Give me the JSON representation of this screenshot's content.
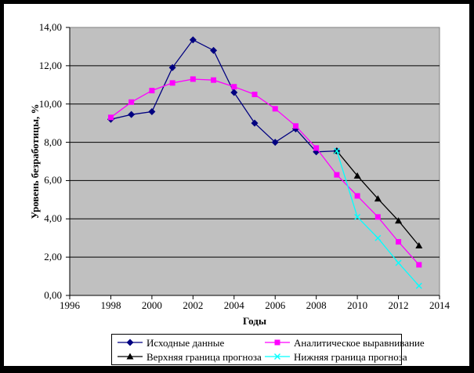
{
  "window": {
    "background": "#ffffff",
    "frame_color": "#000000"
  },
  "chart_data": {
    "type": "line",
    "title": "",
    "xlabel": "Годы",
    "ylabel": "Уровень безработицы, %",
    "xlim": [
      1996,
      2014
    ],
    "ylim": [
      0,
      14
    ],
    "x_tick_values": [
      1996,
      1998,
      2000,
      2002,
      2004,
      2006,
      2008,
      2010,
      2012,
      2014
    ],
    "x_tick_labels": [
      "1996",
      "1998",
      "2000",
      "2002",
      "2004",
      "2006",
      "2008",
      "2010",
      "2012",
      "2014"
    ],
    "y_tick_values": [
      0,
      2,
      4,
      6,
      8,
      10,
      12,
      14
    ],
    "y_tick_labels": [
      "0,00",
      "2,00",
      "4,00",
      "6,00",
      "8,00",
      "10,00",
      "12,00",
      "14,00"
    ],
    "grid": "horizontal",
    "plot_background": "#c0c0c0",
    "plot_border_color": "#808080",
    "axis_color": "#000000",
    "legend_position": "bottom",
    "series": [
      {
        "name": "Исходные данные",
        "color": "#000080",
        "marker": "diamond",
        "x": [
          1998,
          1999,
          2000,
          2001,
          2002,
          2003,
          2004,
          2005,
          2006,
          2007,
          2008,
          2009
        ],
        "values": [
          9.2,
          9.45,
          9.6,
          11.9,
          13.35,
          12.8,
          10.6,
          9.0,
          8.0,
          8.7,
          7.5,
          7.55
        ]
      },
      {
        "name": "Аналитическое выравнивание",
        "color": "#ff00ff",
        "marker": "square",
        "x": [
          1998,
          1999,
          2000,
          2001,
          2002,
          2003,
          2004,
          2005,
          2006,
          2007,
          2008,
          2009,
          2010,
          2011,
          2012,
          2013
        ],
        "values": [
          9.3,
          10.1,
          10.7,
          11.1,
          11.3,
          11.25,
          10.9,
          10.5,
          9.75,
          8.85,
          7.7,
          6.3,
          5.2,
          4.1,
          2.8,
          1.6
        ]
      },
      {
        "name": "Верхняя граница прогноза",
        "color": "#000000",
        "marker": "triangle",
        "x": [
          2009,
          2010,
          2011,
          2012,
          2013
        ],
        "values": [
          7.55,
          6.25,
          5.05,
          3.9,
          2.6
        ]
      },
      {
        "name": "Нижняя граница прогноза",
        "color": "#00ffff",
        "marker": "x",
        "x": [
          2009,
          2010,
          2011,
          2012,
          2013
        ],
        "values": [
          7.55,
          4.1,
          3.0,
          1.7,
          0.5
        ]
      }
    ]
  }
}
